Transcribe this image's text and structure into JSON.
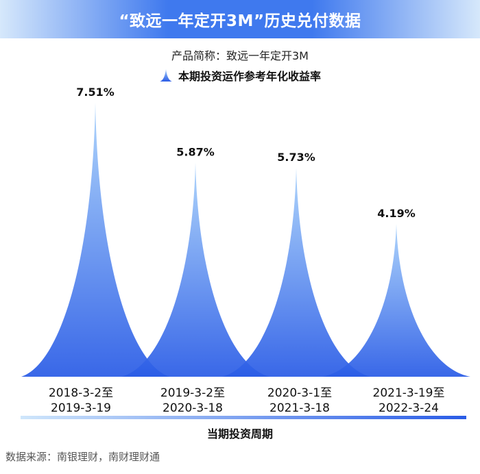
{
  "header": {
    "title": "“致远一年定开3M”历史兑付数据",
    "subtitle": "产品简称：致远一年定开3M",
    "legend_label": "本期投资运作参考年化收益率"
  },
  "chart_data": {
    "type": "bar",
    "title": "“致远一年定开3M”历史兑付数据",
    "subtitle": "产品简称：致远一年定开3M",
    "xlabel": "当期投资周期",
    "ylabel": "",
    "categories": [
      [
        "2018-3-2至",
        "2019-3-19"
      ],
      [
        "2019-3-2至",
        "2020-3-18"
      ],
      [
        "2020-3-1至",
        "2021-3-18"
      ],
      [
        "2021-3-19至",
        "2022-3-24"
      ]
    ],
    "series": [
      {
        "name": "本期投资运作参考年化收益率",
        "values": [
          7.51,
          5.87,
          5.73,
          4.19
        ],
        "unit": "%"
      }
    ],
    "data_labels": [
      "7.51%",
      "5.87%",
      "5.73%",
      "4.19%"
    ],
    "ylim": [
      0,
      8.2
    ],
    "grid": false,
    "legend_position": "top",
    "colors": {
      "top": "#a9d2fb",
      "bottom": "#2a5ce6"
    }
  },
  "footer": {
    "source": "数据来源：南银理财，南财理财通"
  }
}
